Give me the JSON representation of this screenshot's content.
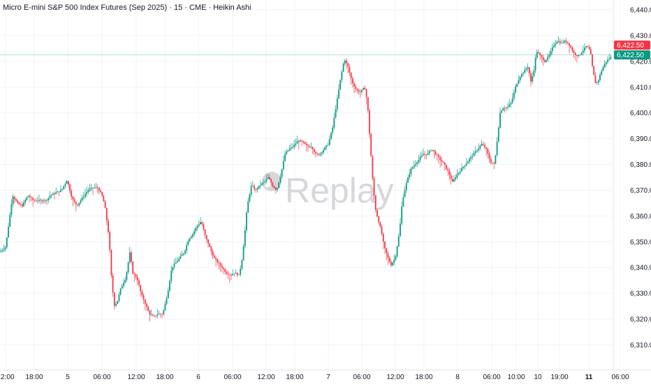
{
  "chart_data": {
    "type": "candlestick",
    "title": "Micro E-mini S&P 500 Index Futures (Sep 2025) · 15 · CME · Heikin Ashi",
    "watermark": "Replay",
    "ylim": [
      6305,
      6442
    ],
    "y_ticks": [
      "6,440.00",
      "6,430.00",
      "6,420.00",
      "6,410.00",
      "6,400.00",
      "6,390.00",
      "6,380.00",
      "6,370.00",
      "6,360.00",
      "6,350.00",
      "6,340.00",
      "6,330.00",
      "6,320.00",
      "6,310.00"
    ],
    "x_ticks": [
      {
        "label": "12:00",
        "bold": false
      },
      {
        "label": "18:00",
        "bold": false
      },
      {
        "label": "5",
        "bold": false
      },
      {
        "label": "06:00",
        "bold": false
      },
      {
        "label": "12:00",
        "bold": false
      },
      {
        "label": "18:00",
        "bold": false
      },
      {
        "label": "6",
        "bold": false
      },
      {
        "label": "06:00",
        "bold": false
      },
      {
        "label": "12:00",
        "bold": false
      },
      {
        "label": "18:00",
        "bold": false
      },
      {
        "label": "7",
        "bold": false
      },
      {
        "label": "06:00",
        "bold": false
      },
      {
        "label": "12:00",
        "bold": false
      },
      {
        "label": "18:00",
        "bold": false
      },
      {
        "label": "8",
        "bold": false
      },
      {
        "label": "06:00",
        "bold": false
      },
      {
        "label": "10:00",
        "bold": false
      },
      {
        "label": "10",
        "bold": false
      },
      {
        "label": "19:00",
        "bold": false
      },
      {
        "label": "11",
        "bold": true
      },
      {
        "label": "06:00",
        "bold": false
      }
    ],
    "last_price": 6422.5,
    "price_labels": [
      {
        "text": "6,422.50",
        "color": "#f23645"
      },
      {
        "text": "6,422.50",
        "color": "#089981"
      }
    ],
    "up_color": "#089981",
    "down_color": "#f23645",
    "grid": true,
    "path_anchors": [
      [
        0,
        6346
      ],
      [
        8,
        6348
      ],
      [
        18,
        6368
      ],
      [
        25,
        6365
      ],
      [
        32,
        6364
      ],
      [
        40,
        6368
      ],
      [
        48,
        6366
      ],
      [
        58,
        6366
      ],
      [
        66,
        6366
      ],
      [
        72,
        6368
      ],
      [
        80,
        6369
      ],
      [
        88,
        6370
      ],
      [
        96,
        6374
      ],
      [
        103,
        6367
      ],
      [
        110,
        6364
      ],
      [
        118,
        6367
      ],
      [
        126,
        6370
      ],
      [
        133,
        6371
      ],
      [
        140,
        6371
      ],
      [
        146,
        6368
      ],
      [
        150,
        6364
      ],
      [
        156,
        6352
      ],
      [
        160,
        6334
      ],
      [
        164,
        6325
      ],
      [
        168,
        6327
      ],
      [
        173,
        6332
      ],
      [
        180,
        6336
      ],
      [
        186,
        6346
      ],
      [
        190,
        6338
      ],
      [
        196,
        6336
      ],
      [
        202,
        6330
      ],
      [
        208,
        6326
      ],
      [
        214,
        6322
      ],
      [
        220,
        6321
      ],
      [
        226,
        6322
      ],
      [
        233,
        6322
      ],
      [
        240,
        6330
      ],
      [
        246,
        6340
      ],
      [
        252,
        6342
      ],
      [
        258,
        6344
      ],
      [
        264,
        6346
      ],
      [
        270,
        6351
      ],
      [
        276,
        6353
      ],
      [
        282,
        6356
      ],
      [
        288,
        6358
      ],
      [
        294,
        6352
      ],
      [
        300,
        6348
      ],
      [
        306,
        6344
      ],
      [
        312,
        6342
      ],
      [
        318,
        6340
      ],
      [
        324,
        6338
      ],
      [
        330,
        6337
      ],
      [
        336,
        6338
      ],
      [
        342,
        6337
      ],
      [
        346,
        6342
      ],
      [
        350,
        6352
      ],
      [
        354,
        6364
      ],
      [
        360,
        6372
      ],
      [
        366,
        6370
      ],
      [
        372,
        6372
      ],
      [
        378,
        6373
      ],
      [
        384,
        6375
      ],
      [
        390,
        6372
      ],
      [
        396,
        6370
      ],
      [
        402,
        6376
      ],
      [
        408,
        6384
      ],
      [
        414,
        6386
      ],
      [
        420,
        6387
      ],
      [
        426,
        6389
      ],
      [
        432,
        6389
      ],
      [
        440,
        6387
      ],
      [
        446,
        6387
      ],
      [
        452,
        6384
      ],
      [
        458,
        6384
      ],
      [
        464,
        6386
      ],
      [
        470,
        6388
      ],
      [
        476,
        6394
      ],
      [
        482,
        6404
      ],
      [
        488,
        6414
      ],
      [
        493,
        6421
      ],
      [
        498,
        6418
      ],
      [
        504,
        6412
      ],
      [
        510,
        6409
      ],
      [
        516,
        6408
      ],
      [
        522,
        6410
      ],
      [
        526,
        6404
      ],
      [
        530,
        6388
      ],
      [
        534,
        6372
      ],
      [
        538,
        6362
      ],
      [
        542,
        6358
      ],
      [
        546,
        6354
      ],
      [
        550,
        6348
      ],
      [
        555,
        6344
      ],
      [
        560,
        6341
      ],
      [
        566,
        6344
      ],
      [
        572,
        6354
      ],
      [
        576,
        6366
      ],
      [
        582,
        6373
      ],
      [
        588,
        6378
      ],
      [
        594,
        6380
      ],
      [
        600,
        6382
      ],
      [
        606,
        6384
      ],
      [
        612,
        6384
      ],
      [
        618,
        6386
      ],
      [
        624,
        6384
      ],
      [
        630,
        6382
      ],
      [
        636,
        6380
      ],
      [
        642,
        6377
      ],
      [
        648,
        6373
      ],
      [
        654,
        6376
      ],
      [
        660,
        6378
      ],
      [
        666,
        6380
      ],
      [
        672,
        6382
      ],
      [
        678,
        6384
      ],
      [
        684,
        6386
      ],
      [
        690,
        6388
      ],
      [
        696,
        6386
      ],
      [
        702,
        6381
      ],
      [
        708,
        6380
      ],
      [
        712,
        6390
      ],
      [
        716,
        6400
      ],
      [
        720,
        6402
      ],
      [
        726,
        6402
      ],
      [
        732,
        6404
      ],
      [
        738,
        6410
      ],
      [
        744,
        6414
      ],
      [
        750,
        6416
      ],
      [
        756,
        6418
      ],
      [
        760,
        6412
      ],
      [
        764,
        6416
      ],
      [
        768,
        6424
      ],
      [
        774,
        6422
      ],
      [
        780,
        6420
      ],
      [
        786,
        6422
      ],
      [
        792,
        6426
      ],
      [
        798,
        6428
      ],
      [
        804,
        6427
      ],
      [
        810,
        6428
      ],
      [
        816,
        6426
      ],
      [
        822,
        6423
      ],
      [
        828,
        6422
      ],
      [
        834,
        6424
      ],
      [
        840,
        6426
      ],
      [
        845,
        6424
      ],
      [
        849,
        6416
      ],
      [
        853,
        6411
      ],
      [
        857,
        6413
      ],
      [
        862,
        6417
      ],
      [
        868,
        6420
      ],
      [
        876,
        6422
      ]
    ]
  }
}
